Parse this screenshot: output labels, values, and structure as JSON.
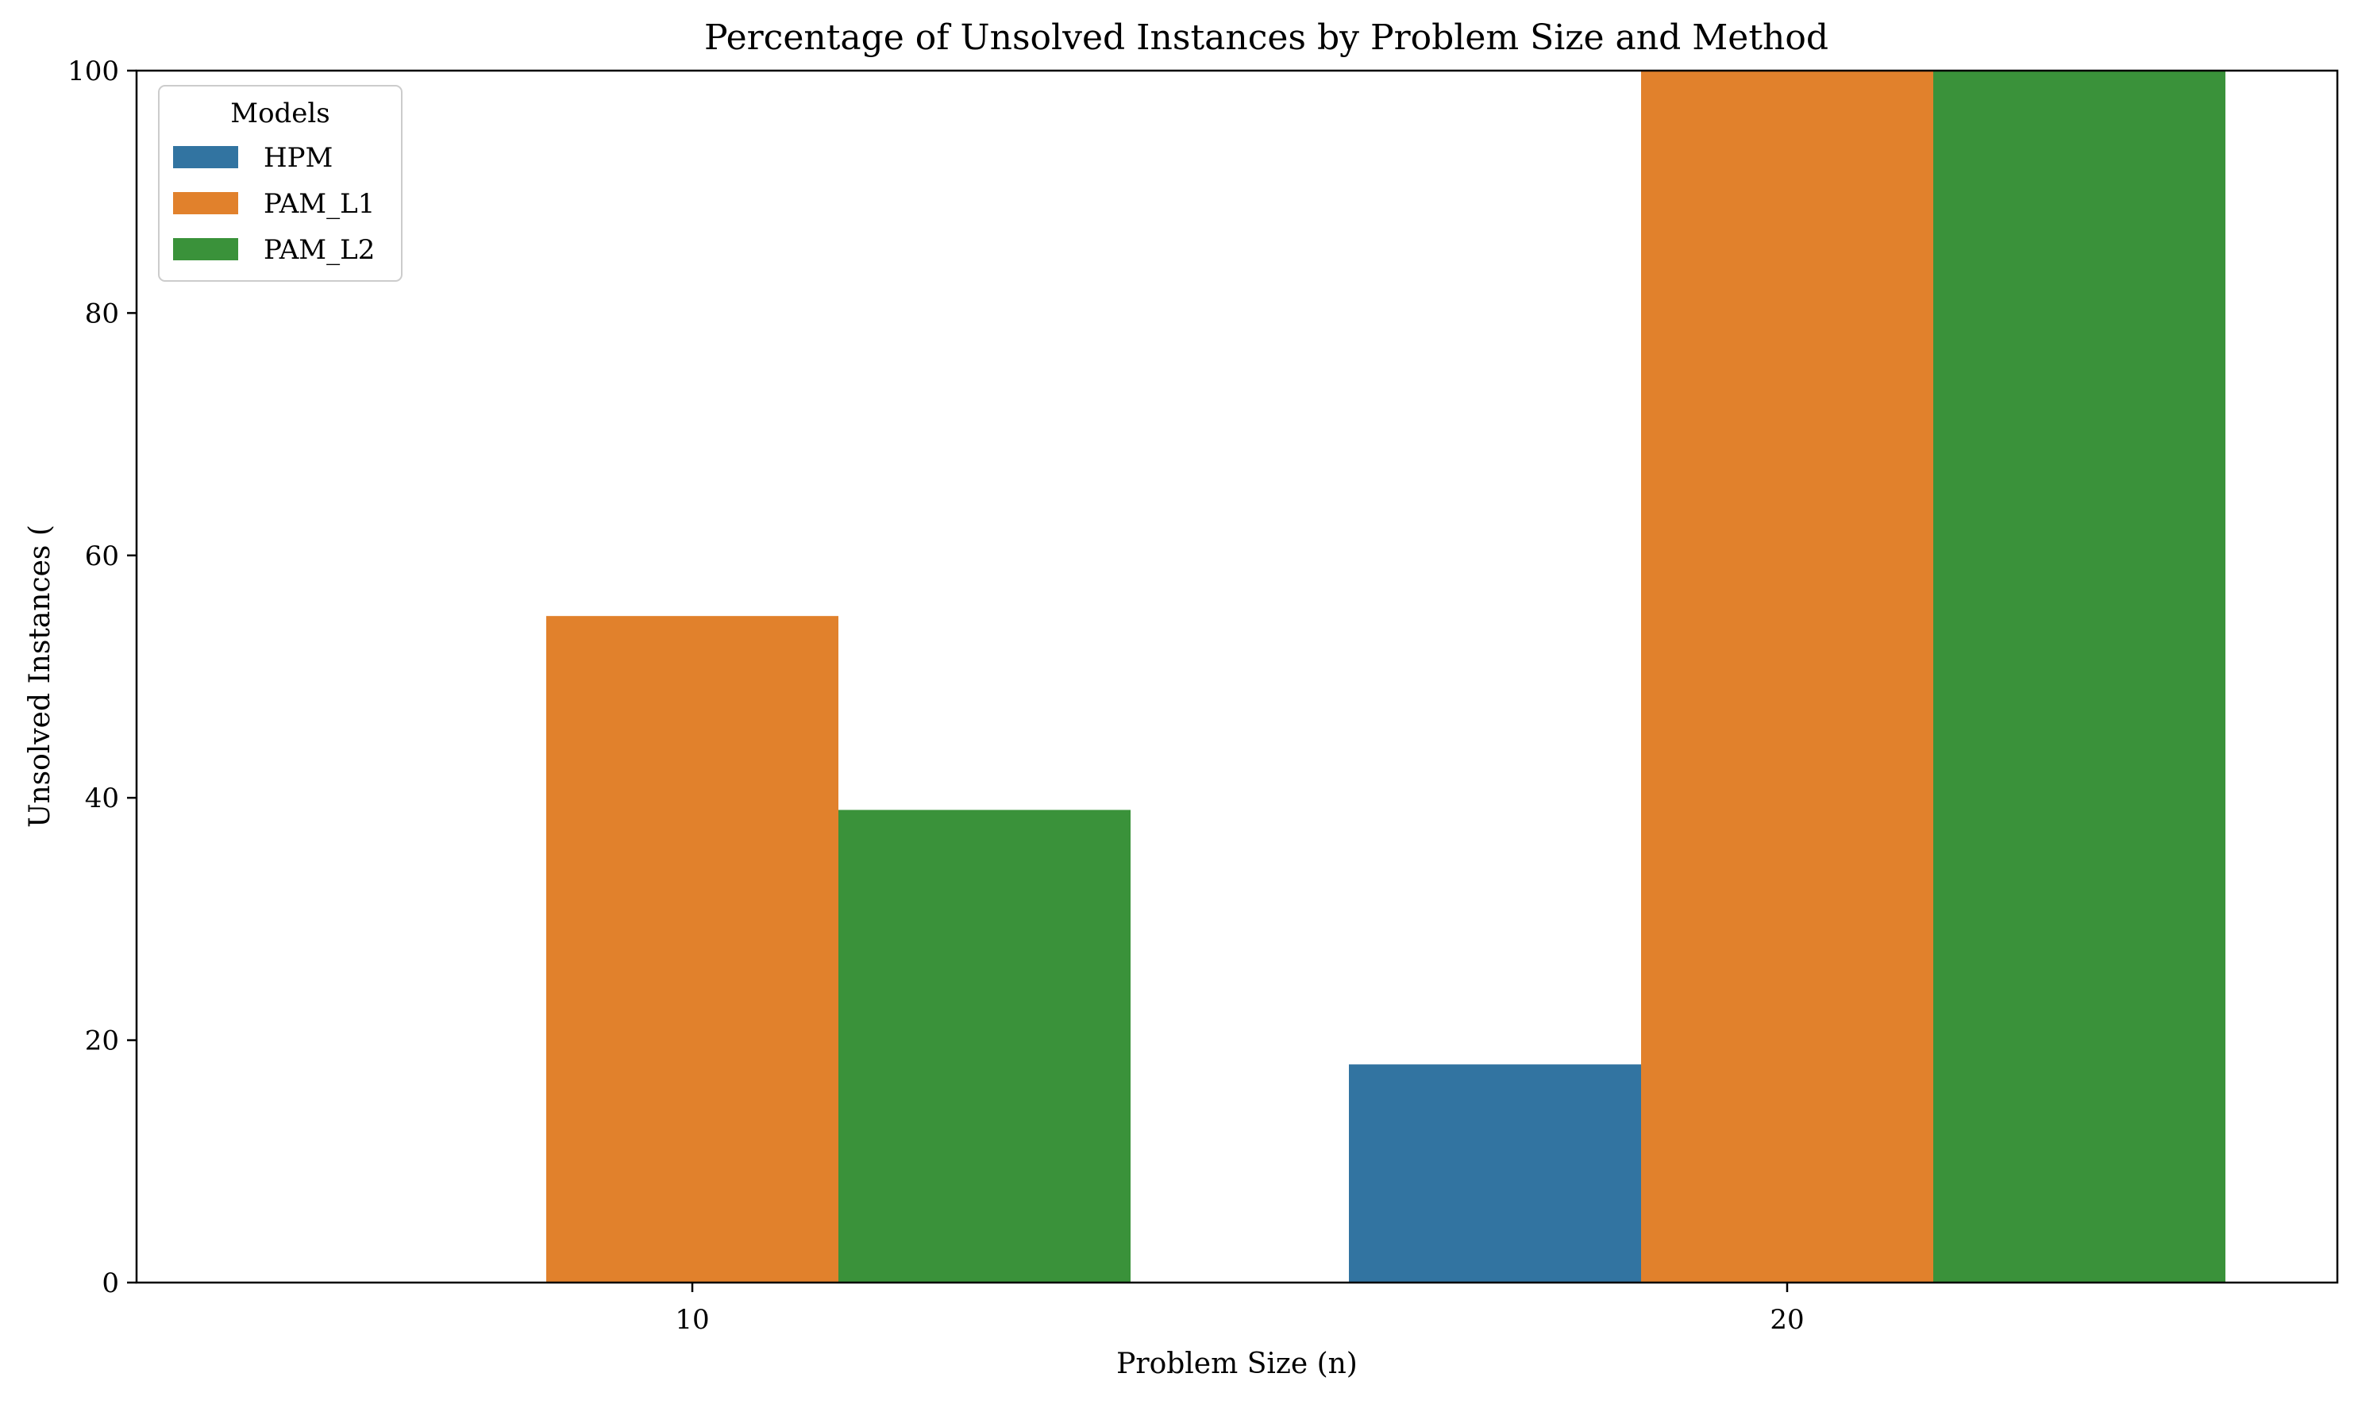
{
  "chart_data": {
    "type": "bar",
    "title": "Percentage of Unsolved Instances by Problem Size and Method",
    "xlabel": "Problem Size (n)",
    "ylabel": "Unsolved Instances (",
    "categories": [
      "10",
      "20"
    ],
    "series": [
      {
        "name": "HPM",
        "color": "#3274a1",
        "values": [
          0,
          18
        ]
      },
      {
        "name": "PAM_L1",
        "color": "#e1812c",
        "values": [
          55,
          100
        ]
      },
      {
        "name": "PAM_L2",
        "color": "#3a923a",
        "values": [
          39,
          100
        ]
      }
    ],
    "ylim": [
      0,
      100
    ],
    "yticks": [
      "0",
      "20",
      "40",
      "60",
      "80",
      "100"
    ],
    "grid": false,
    "legend": {
      "title": "Models",
      "placement": "top-left"
    }
  }
}
